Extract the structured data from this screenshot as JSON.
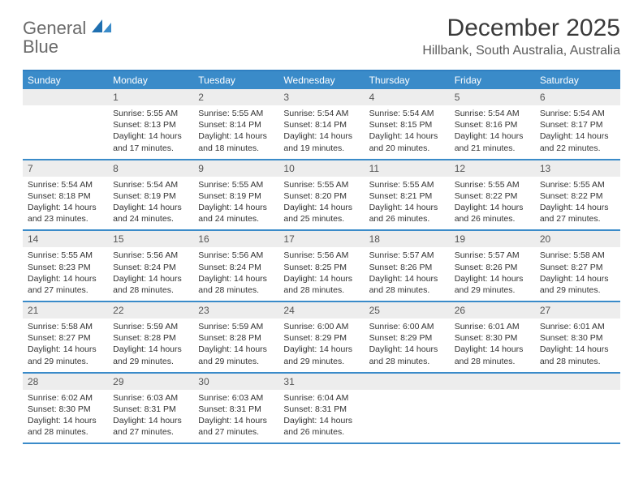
{
  "brand": {
    "word1": "General",
    "word2": "Blue"
  },
  "title": "December 2025",
  "location": "Hillbank, South Australia, Australia",
  "colors": {
    "accent": "#3a8bc9",
    "accent_border": "#2f7fc1",
    "header_gray": "#ededed",
    "text": "#333333",
    "title_text": "#3a3a3a",
    "subtitle_text": "#5a5a5a",
    "logo_gray": "#6a6a6a"
  },
  "weekdays": [
    "Sunday",
    "Monday",
    "Tuesday",
    "Wednesday",
    "Thursday",
    "Friday",
    "Saturday"
  ],
  "weeks": [
    [
      null,
      {
        "n": "1",
        "sr": "5:55 AM",
        "ss": "8:13 PM",
        "dl": "14 hours and 17 minutes."
      },
      {
        "n": "2",
        "sr": "5:55 AM",
        "ss": "8:14 PM",
        "dl": "14 hours and 18 minutes."
      },
      {
        "n": "3",
        "sr": "5:54 AM",
        "ss": "8:14 PM",
        "dl": "14 hours and 19 minutes."
      },
      {
        "n": "4",
        "sr": "5:54 AM",
        "ss": "8:15 PM",
        "dl": "14 hours and 20 minutes."
      },
      {
        "n": "5",
        "sr": "5:54 AM",
        "ss": "8:16 PM",
        "dl": "14 hours and 21 minutes."
      },
      {
        "n": "6",
        "sr": "5:54 AM",
        "ss": "8:17 PM",
        "dl": "14 hours and 22 minutes."
      }
    ],
    [
      {
        "n": "7",
        "sr": "5:54 AM",
        "ss": "8:18 PM",
        "dl": "14 hours and 23 minutes."
      },
      {
        "n": "8",
        "sr": "5:54 AM",
        "ss": "8:19 PM",
        "dl": "14 hours and 24 minutes."
      },
      {
        "n": "9",
        "sr": "5:55 AM",
        "ss": "8:19 PM",
        "dl": "14 hours and 24 minutes."
      },
      {
        "n": "10",
        "sr": "5:55 AM",
        "ss": "8:20 PM",
        "dl": "14 hours and 25 minutes."
      },
      {
        "n": "11",
        "sr": "5:55 AM",
        "ss": "8:21 PM",
        "dl": "14 hours and 26 minutes."
      },
      {
        "n": "12",
        "sr": "5:55 AM",
        "ss": "8:22 PM",
        "dl": "14 hours and 26 minutes."
      },
      {
        "n": "13",
        "sr": "5:55 AM",
        "ss": "8:22 PM",
        "dl": "14 hours and 27 minutes."
      }
    ],
    [
      {
        "n": "14",
        "sr": "5:55 AM",
        "ss": "8:23 PM",
        "dl": "14 hours and 27 minutes."
      },
      {
        "n": "15",
        "sr": "5:56 AM",
        "ss": "8:24 PM",
        "dl": "14 hours and 28 minutes."
      },
      {
        "n": "16",
        "sr": "5:56 AM",
        "ss": "8:24 PM",
        "dl": "14 hours and 28 minutes."
      },
      {
        "n": "17",
        "sr": "5:56 AM",
        "ss": "8:25 PM",
        "dl": "14 hours and 28 minutes."
      },
      {
        "n": "18",
        "sr": "5:57 AM",
        "ss": "8:26 PM",
        "dl": "14 hours and 28 minutes."
      },
      {
        "n": "19",
        "sr": "5:57 AM",
        "ss": "8:26 PM",
        "dl": "14 hours and 29 minutes."
      },
      {
        "n": "20",
        "sr": "5:58 AM",
        "ss": "8:27 PM",
        "dl": "14 hours and 29 minutes."
      }
    ],
    [
      {
        "n": "21",
        "sr": "5:58 AM",
        "ss": "8:27 PM",
        "dl": "14 hours and 29 minutes."
      },
      {
        "n": "22",
        "sr": "5:59 AM",
        "ss": "8:28 PM",
        "dl": "14 hours and 29 minutes."
      },
      {
        "n": "23",
        "sr": "5:59 AM",
        "ss": "8:28 PM",
        "dl": "14 hours and 29 minutes."
      },
      {
        "n": "24",
        "sr": "6:00 AM",
        "ss": "8:29 PM",
        "dl": "14 hours and 29 minutes."
      },
      {
        "n": "25",
        "sr": "6:00 AM",
        "ss": "8:29 PM",
        "dl": "14 hours and 28 minutes."
      },
      {
        "n": "26",
        "sr": "6:01 AM",
        "ss": "8:30 PM",
        "dl": "14 hours and 28 minutes."
      },
      {
        "n": "27",
        "sr": "6:01 AM",
        "ss": "8:30 PM",
        "dl": "14 hours and 28 minutes."
      }
    ],
    [
      {
        "n": "28",
        "sr": "6:02 AM",
        "ss": "8:30 PM",
        "dl": "14 hours and 28 minutes."
      },
      {
        "n": "29",
        "sr": "6:03 AM",
        "ss": "8:31 PM",
        "dl": "14 hours and 27 minutes."
      },
      {
        "n": "30",
        "sr": "6:03 AM",
        "ss": "8:31 PM",
        "dl": "14 hours and 27 minutes."
      },
      {
        "n": "31",
        "sr": "6:04 AM",
        "ss": "8:31 PM",
        "dl": "14 hours and 26 minutes."
      },
      null,
      null,
      null
    ]
  ],
  "labels": {
    "sunrise": "Sunrise:",
    "sunset": "Sunset:",
    "daylight": "Daylight:"
  }
}
